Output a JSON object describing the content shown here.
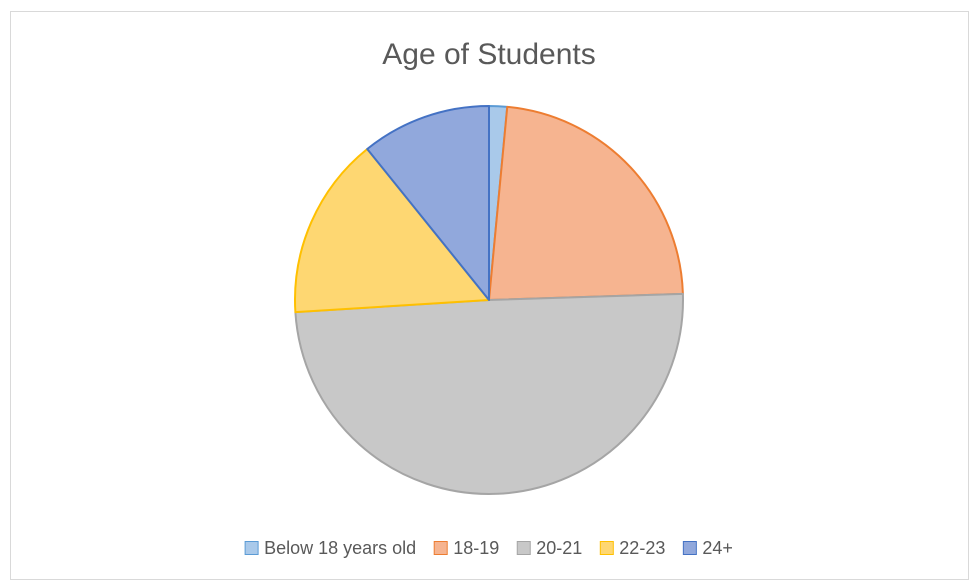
{
  "chart_data": {
    "type": "pie",
    "title": "Age of Students",
    "categories": [
      "Below 18 years old",
      "18-19",
      "20-21",
      "22-23",
      "24+"
    ],
    "values": [
      1.5,
      23,
      49.5,
      15.2,
      10.8
    ],
    "colors": [
      "#a9c9ea",
      "#f6b490",
      "#c8c8c8",
      "#fed772",
      "#91a8dc"
    ],
    "edge_colors": [
      "#5b9bd5",
      "#ed7d31",
      "#a5a5a5",
      "#ffc000",
      "#4472c4"
    ],
    "legend": "bottom"
  }
}
